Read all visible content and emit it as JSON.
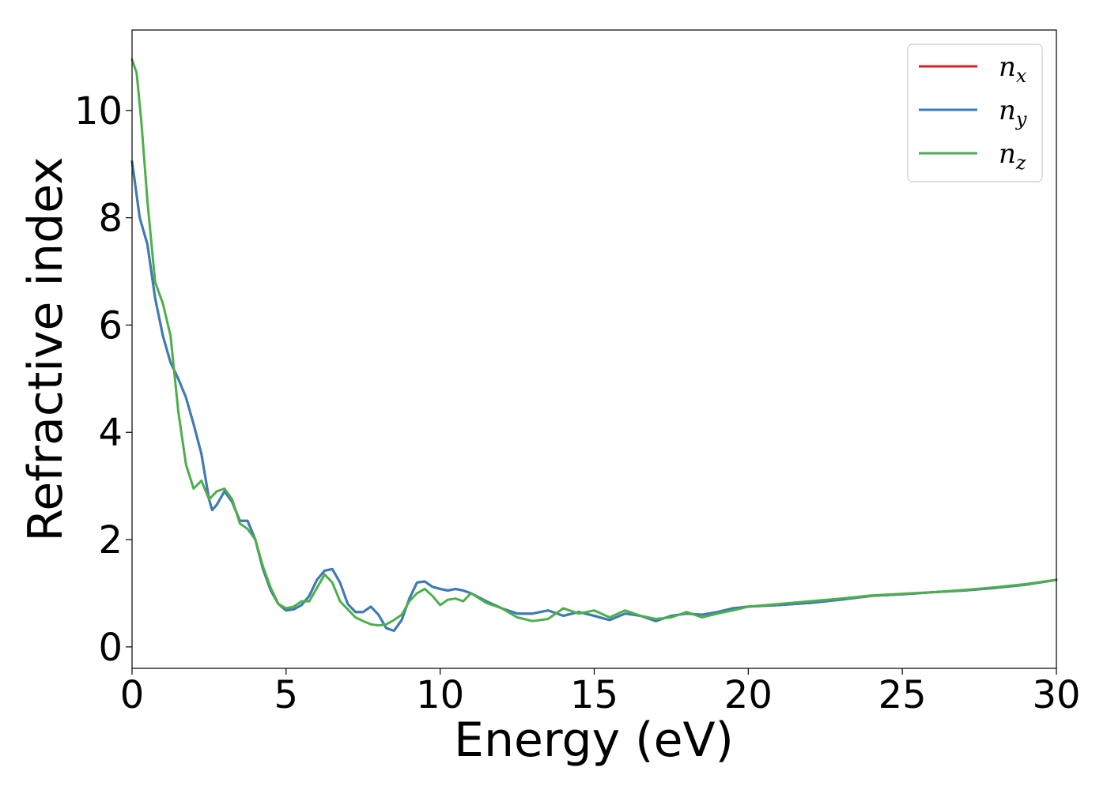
{
  "chart_data": {
    "type": "line",
    "xlabel": "Energy (eV)",
    "ylabel": "Refractive index",
    "xlim": [
      0,
      30
    ],
    "ylim": [
      -0.4,
      11.5
    ],
    "xticks": [
      0,
      5,
      10,
      15,
      20,
      25,
      30
    ],
    "yticks": [
      0,
      2,
      4,
      6,
      8,
      10
    ],
    "grid": false,
    "legend_position": "top-right",
    "series": [
      {
        "name": "n",
        "subscript": "x",
        "color": "#e41a1c",
        "x": [
          0,
          0.25,
          0.5,
          0.75,
          1.0,
          1.25,
          1.5,
          1.75,
          2.0,
          2.25,
          2.5,
          2.6,
          2.75,
          3.0,
          3.25,
          3.5,
          3.75,
          4.0,
          4.25,
          4.5,
          4.75,
          5.0,
          5.25,
          5.5,
          5.75,
          6.0,
          6.25,
          6.5,
          6.75,
          7.0,
          7.25,
          7.5,
          7.75,
          8.0,
          8.25,
          8.5,
          8.75,
          9.0,
          9.25,
          9.5,
          9.75,
          10.0,
          10.25,
          10.5,
          10.75,
          11.0,
          11.5,
          12.0,
          12.5,
          13.0,
          13.5,
          14.0,
          14.5,
          15.0,
          15.5,
          16.0,
          16.5,
          17.0,
          17.5,
          18.0,
          18.5,
          19.0,
          19.5,
          20.0,
          21.0,
          22.0,
          23.0,
          24.0,
          25.0,
          26.0,
          27.0,
          28.0,
          29.0,
          30.0
        ],
        "y": [
          9.05,
          8.0,
          7.5,
          6.5,
          5.8,
          5.3,
          5.0,
          4.65,
          4.15,
          3.6,
          2.75,
          2.55,
          2.65,
          2.9,
          2.7,
          2.35,
          2.35,
          2.0,
          1.45,
          1.05,
          0.8,
          0.68,
          0.7,
          0.78,
          0.95,
          1.25,
          1.42,
          1.45,
          1.2,
          0.8,
          0.65,
          0.65,
          0.75,
          0.6,
          0.35,
          0.3,
          0.5,
          0.9,
          1.2,
          1.22,
          1.12,
          1.08,
          1.05,
          1.08,
          1.05,
          1.0,
          0.85,
          0.72,
          0.62,
          0.62,
          0.68,
          0.58,
          0.65,
          0.58,
          0.5,
          0.62,
          0.58,
          0.48,
          0.58,
          0.62,
          0.6,
          0.65,
          0.72,
          0.75,
          0.78,
          0.82,
          0.88,
          0.95,
          0.98,
          1.02,
          1.05,
          1.1,
          1.16,
          1.25
        ]
      },
      {
        "name": "n",
        "subscript": "y",
        "color": "#377eb8",
        "x": [
          0,
          0.25,
          0.5,
          0.75,
          1.0,
          1.25,
          1.5,
          1.75,
          2.0,
          2.25,
          2.5,
          2.6,
          2.75,
          3.0,
          3.25,
          3.5,
          3.75,
          4.0,
          4.25,
          4.5,
          4.75,
          5.0,
          5.25,
          5.5,
          5.75,
          6.0,
          6.25,
          6.5,
          6.75,
          7.0,
          7.25,
          7.5,
          7.75,
          8.0,
          8.25,
          8.5,
          8.75,
          9.0,
          9.25,
          9.5,
          9.75,
          10.0,
          10.25,
          10.5,
          10.75,
          11.0,
          11.5,
          12.0,
          12.5,
          13.0,
          13.5,
          14.0,
          14.5,
          15.0,
          15.5,
          16.0,
          16.5,
          17.0,
          17.5,
          18.0,
          18.5,
          19.0,
          19.5,
          20.0,
          21.0,
          22.0,
          23.0,
          24.0,
          25.0,
          26.0,
          27.0,
          28.0,
          29.0,
          30.0
        ],
        "y": [
          9.05,
          8.0,
          7.5,
          6.5,
          5.8,
          5.3,
          5.0,
          4.65,
          4.15,
          3.6,
          2.75,
          2.55,
          2.65,
          2.9,
          2.7,
          2.35,
          2.35,
          2.0,
          1.45,
          1.05,
          0.8,
          0.68,
          0.7,
          0.78,
          0.95,
          1.25,
          1.42,
          1.45,
          1.2,
          0.8,
          0.65,
          0.65,
          0.75,
          0.6,
          0.35,
          0.3,
          0.5,
          0.9,
          1.2,
          1.22,
          1.12,
          1.08,
          1.05,
          1.08,
          1.05,
          1.0,
          0.85,
          0.72,
          0.62,
          0.62,
          0.68,
          0.58,
          0.65,
          0.58,
          0.5,
          0.62,
          0.58,
          0.48,
          0.58,
          0.62,
          0.6,
          0.65,
          0.72,
          0.75,
          0.78,
          0.82,
          0.88,
          0.95,
          0.98,
          1.02,
          1.05,
          1.1,
          1.16,
          1.25
        ]
      },
      {
        "name": "n",
        "subscript": "z",
        "color": "#4daf4a",
        "x": [
          0,
          0.15,
          0.3,
          0.5,
          0.75,
          1.0,
          1.25,
          1.5,
          1.75,
          2.0,
          2.25,
          2.5,
          2.75,
          3.0,
          3.25,
          3.5,
          3.75,
          4.0,
          4.25,
          4.5,
          4.75,
          5.0,
          5.25,
          5.5,
          5.75,
          6.0,
          6.25,
          6.5,
          6.75,
          7.0,
          7.25,
          7.5,
          7.75,
          8.0,
          8.25,
          8.5,
          8.75,
          9.0,
          9.25,
          9.5,
          9.75,
          10.0,
          10.25,
          10.5,
          10.75,
          11.0,
          11.5,
          12.0,
          12.5,
          13.0,
          13.5,
          14.0,
          14.5,
          15.0,
          15.5,
          16.0,
          16.5,
          17.0,
          17.5,
          18.0,
          18.5,
          19.0,
          19.5,
          20.0,
          21.0,
          22.0,
          23.0,
          24.0,
          25.0,
          26.0,
          27.0,
          28.0,
          29.0,
          30.0
        ],
        "y": [
          10.95,
          10.7,
          9.8,
          8.3,
          6.8,
          6.4,
          5.8,
          4.4,
          3.4,
          2.95,
          3.1,
          2.75,
          2.9,
          2.95,
          2.75,
          2.3,
          2.2,
          2.0,
          1.5,
          1.1,
          0.8,
          0.72,
          0.75,
          0.85,
          0.85,
          1.1,
          1.35,
          1.2,
          0.85,
          0.7,
          0.55,
          0.48,
          0.42,
          0.4,
          0.42,
          0.5,
          0.6,
          0.85,
          1.0,
          1.08,
          0.95,
          0.78,
          0.88,
          0.9,
          0.85,
          1.0,
          0.82,
          0.72,
          0.55,
          0.48,
          0.52,
          0.72,
          0.62,
          0.68,
          0.55,
          0.68,
          0.58,
          0.52,
          0.55,
          0.65,
          0.55,
          0.62,
          0.68,
          0.75,
          0.8,
          0.85,
          0.9,
          0.96,
          0.99,
          1.02,
          1.06,
          1.11,
          1.17,
          1.25
        ]
      }
    ]
  }
}
